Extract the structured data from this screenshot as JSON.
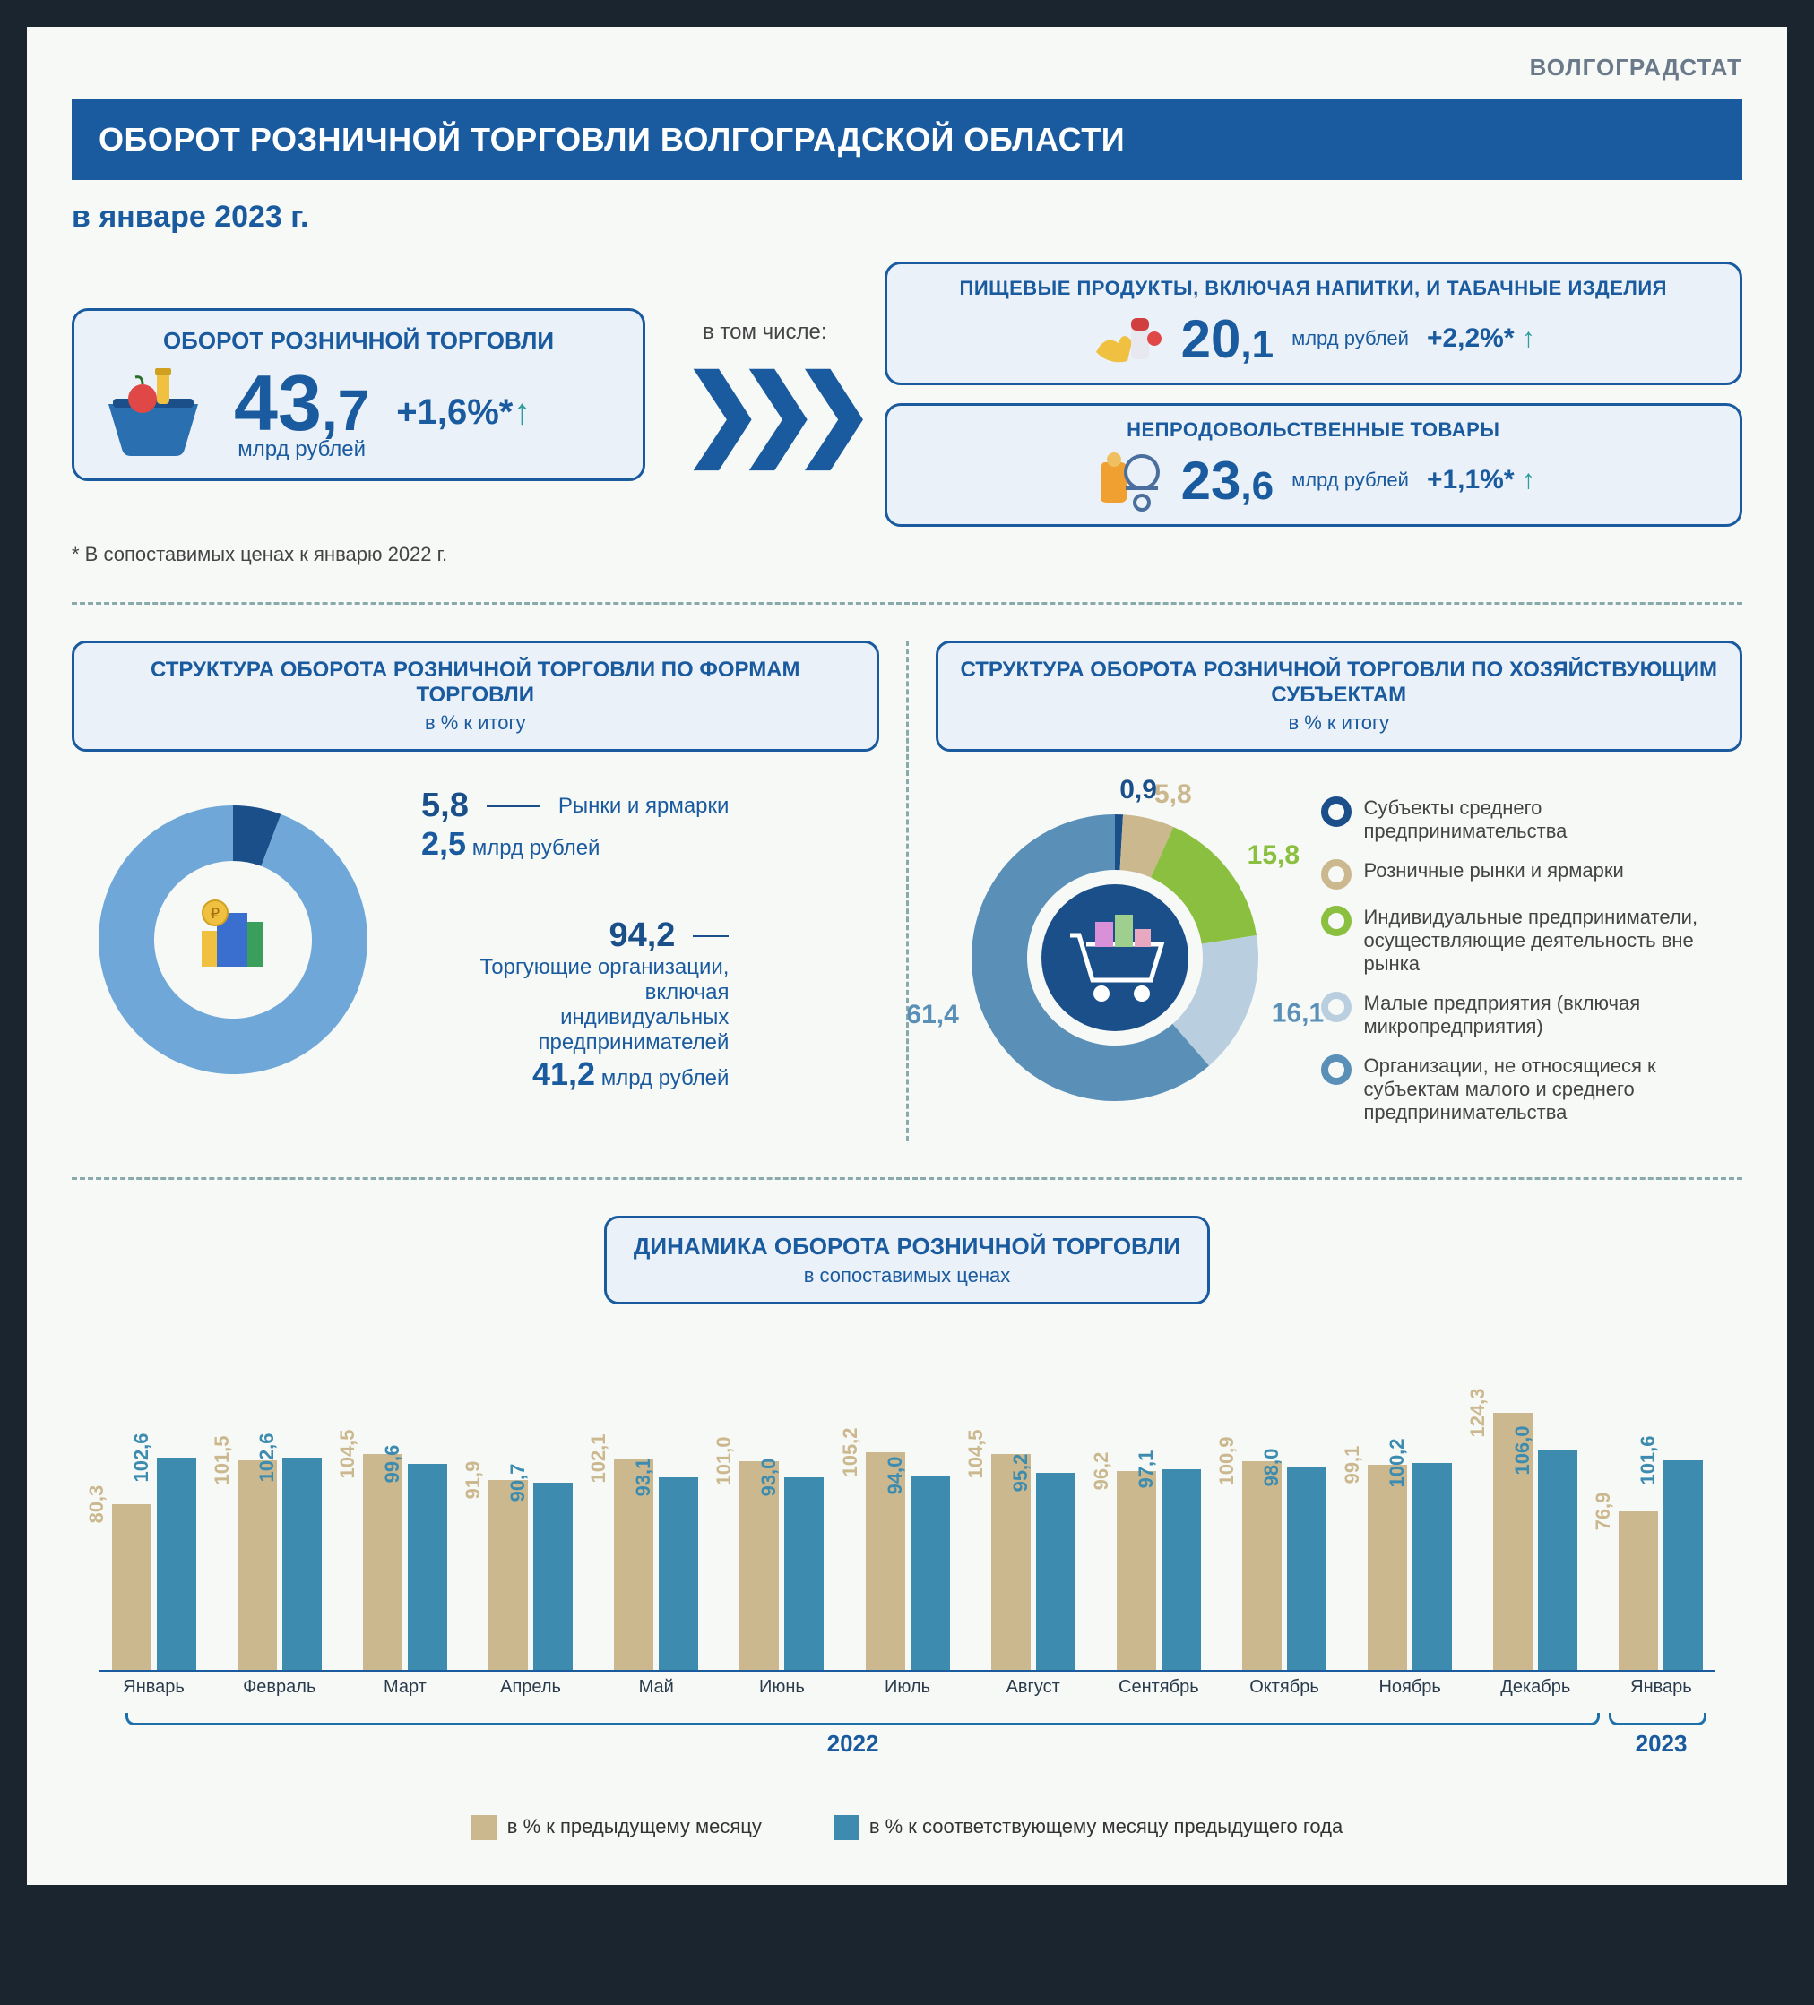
{
  "brand": "ВОЛГОГРАДСТАТ",
  "title": "ОБОРОТ РОЗНИЧНОЙ ТОРГОВЛИ ВОЛГОГРАДСКОЙ ОБЛАСТИ",
  "subtitle": "в январе 2023 г.",
  "including_label": "в том числе:",
  "total": {
    "title": "ОБОРОТ РОЗНИЧНОЙ ТОРГОВЛИ",
    "int": "43",
    "dec": ",7",
    "unit": "млрд рублей",
    "delta": "+1,6%*"
  },
  "food": {
    "title": "ПИЩЕВЫЕ ПРОДУКТЫ, ВКЛЮЧАЯ НАПИТКИ, И ТАБАЧНЫЕ ИЗДЕЛИЯ",
    "int": "20",
    "dec": ",1",
    "unit": "млрд рублей",
    "delta": "+2,2%*"
  },
  "nonfood": {
    "title": "НЕПРОДОВОЛЬСТВЕННЫЕ ТОВАРЫ",
    "int": "23",
    "dec": ",6",
    "unit": "млрд рублей",
    "delta": "+1,1%*"
  },
  "footnote": "* В сопоставимых ценах к январю 2022 г.",
  "donut1": {
    "title": "СТРУКТУРА ОБОРОТА РОЗНИЧНОЙ ТОРГОВЛИ ПО ФОРМАМ ТОРГОВЛИ",
    "subtitle": "в % к итогу",
    "slices": [
      {
        "label": "Рынки и ярмарки",
        "pct": 5.8,
        "pct_str": "5,8",
        "amount": "2,5",
        "amount_unit": "млрд рублей",
        "color": "#1a4f8a"
      },
      {
        "label": "Торгующие организации, включая индивидуальных предпринимателей",
        "pct": 94.2,
        "pct_str": "94,2",
        "amount": "41,2",
        "amount_unit": "млрд рублей",
        "color": "#6fa8d8"
      }
    ]
  },
  "donut2": {
    "title": "СТРУКТУРА ОБОРОТА РОЗНИЧНОЙ ТОРГОВЛИ ПО ХОЗЯЙСТВУЮЩИМ СУБЪЕКТАМ",
    "subtitle": "в % к итогу",
    "slices": [
      {
        "label": "Субъекты среднего предпринимательства",
        "pct": 0.9,
        "pct_str": "0,9",
        "color": "#1a4f8a"
      },
      {
        "label": "Розничные рынки и ярмарки",
        "pct": 5.8,
        "pct_str": "5,8",
        "color": "#cbb88f"
      },
      {
        "label": "Индивидуальные предприниматели, осуществляющие деятельность вне рынка",
        "pct": 15.8,
        "pct_str": "15,8",
        "color": "#8bbf3f"
      },
      {
        "label": "Малые предприятия (включая микропредприятия)",
        "pct": 16.1,
        "pct_str": "16,1",
        "color": "#b9cfe0"
      },
      {
        "label": "Организации, не относящиеся к субъектам малого и среднего предпринимательства",
        "pct": 61.4,
        "pct_str": "61,4",
        "color": "#5a8fb8"
      }
    ]
  },
  "bars": {
    "title": "ДИНАМИКА ОБОРОТА РОЗНИЧНОЙ ТОРГОВЛИ",
    "subtitle": "в сопоставимых ценах",
    "color_prev_month": "#cbb88f",
    "color_prev_year": "#3d8cb0",
    "legend1": "в % к предыдущему месяцу",
    "legend2": "в % к соответствующему месяцу предыдущего года",
    "months": [
      {
        "name": "Январь",
        "a": 80.3,
        "a_str": "80,3",
        "b": 102.6,
        "b_str": "102,6"
      },
      {
        "name": "Февраль",
        "a": 101.5,
        "a_str": "101,5",
        "b": 102.6,
        "b_str": "102,6"
      },
      {
        "name": "Март",
        "a": 104.5,
        "a_str": "104,5",
        "b": 99.6,
        "b_str": "99,6"
      },
      {
        "name": "Апрель",
        "a": 91.9,
        "a_str": "91,9",
        "b": 90.7,
        "b_str": "90,7"
      },
      {
        "name": "Май",
        "a": 102.1,
        "a_str": "102,1",
        "b": 93.1,
        "b_str": "93,1"
      },
      {
        "name": "Июнь",
        "a": 101.0,
        "a_str": "101,0",
        "b": 93.0,
        "b_str": "93,0"
      },
      {
        "name": "Июль",
        "a": 105.2,
        "a_str": "105,2",
        "b": 94.0,
        "b_str": "94,0"
      },
      {
        "name": "Август",
        "a": 104.5,
        "a_str": "104,5",
        "b": 95.2,
        "b_str": "95,2"
      },
      {
        "name": "Сентябрь",
        "a": 96.2,
        "a_str": "96,2",
        "b": 97.1,
        "b_str": "97,1"
      },
      {
        "name": "Октябрь",
        "a": 100.9,
        "a_str": "100,9",
        "b": 98.0,
        "b_str": "98,0"
      },
      {
        "name": "Ноябрь",
        "a": 99.1,
        "a_str": "99,1",
        "b": 100.2,
        "b_str": "100,2"
      },
      {
        "name": "Декабрь",
        "a": 124.3,
        "a_str": "124,3",
        "b": 106.0,
        "b_str": "106,0"
      },
      {
        "name": "Январь",
        "a": 76.9,
        "a_str": "76,9",
        "b": 101.6,
        "b_str": "101,6"
      }
    ],
    "year1": "2022",
    "year2": "2023",
    "max": 130
  },
  "colors": {
    "primary": "#1a5a9e",
    "teal": "#2d9d9d"
  }
}
